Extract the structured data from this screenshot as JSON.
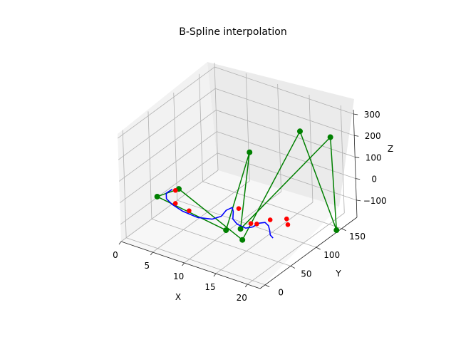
{
  "chart_data": {
    "type": "line",
    "title": "B-Spline interpolation",
    "xlabel": "X",
    "ylabel": "Y",
    "zlabel": "Z",
    "x_ticks": [
      "0",
      "5",
      "10",
      "15",
      "20"
    ],
    "y_ticks": [
      "0",
      "50",
      "100",
      "150"
    ],
    "z_ticks": [
      "300",
      "200",
      "100",
      "0",
      "−100"
    ],
    "grid": true,
    "colors": {
      "spline": "#0000ff",
      "control": "#008000",
      "data_points": "#ff0000",
      "title": "#000000"
    },
    "series": [
      {
        "role": "spline curve",
        "color": "#0000ff",
        "points": [
          [
            3.7,
            47,
            0
          ],
          [
            3.3,
            40,
            -10
          ],
          [
            3.8,
            34,
            -20
          ],
          [
            5,
            30,
            -27
          ],
          [
            7,
            26,
            -32
          ],
          [
            9.5,
            24,
            -33
          ],
          [
            11.5,
            28,
            -28
          ],
          [
            12.5,
            34,
            -15
          ],
          [
            12.8,
            40,
            5
          ],
          [
            13.2,
            47,
            10
          ],
          [
            13.6,
            44,
            0
          ],
          [
            14,
            38,
            -20
          ],
          [
            15,
            34,
            -27
          ],
          [
            16.5,
            32,
            -27
          ],
          [
            17.5,
            34,
            -15
          ],
          [
            18,
            38,
            0
          ],
          [
            18.8,
            42,
            5
          ],
          [
            19.5,
            40,
            0
          ],
          [
            20,
            36,
            -10
          ],
          [
            20.4,
            32,
            -20
          ],
          [
            21,
            30,
            -25
          ]
        ]
      },
      {
        "role": "control polygon",
        "color": "#008000",
        "points": [
          [
            2,
            38,
            -35
          ],
          [
            5,
            44,
            20
          ],
          [
            16,
            31,
            -85
          ],
          [
            15,
            160,
            185
          ],
          [
            22,
            140,
            -170
          ],
          [
            19,
            170,
            180
          ],
          [
            14,
            52,
            -90
          ],
          [
            11,
            110,
            135
          ],
          [
            11,
            60,
            -140
          ],
          [
            2,
            38,
            -35
          ]
        ]
      },
      {
        "role": "data points",
        "color": "#ff0000",
        "points": [
          [
            4.2,
            47,
            0
          ],
          [
            5.3,
            33,
            -25
          ],
          [
            7.7,
            30,
            -30
          ],
          [
            13.9,
            51,
            5
          ],
          [
            16.6,
            41,
            -20
          ],
          [
            17.8,
            38,
            -5
          ],
          [
            19.3,
            46,
            15
          ],
          [
            21.1,
            56,
            20
          ],
          [
            21.6,
            52,
            5
          ]
        ]
      }
    ]
  }
}
